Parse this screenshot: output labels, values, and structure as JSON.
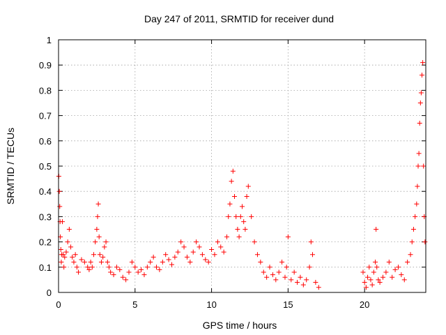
{
  "chart_data": {
    "type": "scatter",
    "title": "Day 247 of 2011, SRMTID for receiver dund",
    "xlabel": "GPS time / hours",
    "ylabel": "SRMTID / TECUs",
    "xlim": [
      0,
      24
    ],
    "ylim": [
      0,
      1
    ],
    "x_ticks": [
      0,
      5,
      10,
      15,
      20
    ],
    "x_tick_labels": [
      "0",
      "5",
      "10",
      "15",
      "20"
    ],
    "y_ticks": [
      0,
      0.1,
      0.2,
      0.3,
      0.4,
      0.5,
      0.6,
      0.7,
      0.8,
      0.9,
      1
    ],
    "y_tick_labels": [
      "0",
      "0.1",
      "0.2",
      "0.3",
      "0.4",
      "0.5",
      "0.6",
      "0.7",
      "0.8",
      "0.9",
      "1"
    ],
    "grid": true,
    "marker": "+",
    "color": "#ff0000",
    "series": [
      {
        "name": "SRMTID",
        "x": [
          0.02,
          0.05,
          0.08,
          0.1,
          0.12,
          0.15,
          0.18,
          0.2,
          0.25,
          0.3,
          0.35,
          0.4,
          0.5,
          0.6,
          0.7,
          0.8,
          0.9,
          1.0,
          1.1,
          1.2,
          1.3,
          1.5,
          1.7,
          1.9,
          2.0,
          2.1,
          2.2,
          2.3,
          2.4,
          2.5,
          2.55,
          2.6,
          2.65,
          2.7,
          2.8,
          2.9,
          3.0,
          3.1,
          3.2,
          3.3,
          3.4,
          3.6,
          3.8,
          4.0,
          4.2,
          4.4,
          4.6,
          4.8,
          5.0,
          5.2,
          5.4,
          5.6,
          5.8,
          6.0,
          6.2,
          6.4,
          6.6,
          6.8,
          7.0,
          7.2,
          7.4,
          7.6,
          7.8,
          8.0,
          8.2,
          8.4,
          8.6,
          8.8,
          9.0,
          9.2,
          9.4,
          9.6,
          9.8,
          10.0,
          10.2,
          10.4,
          10.6,
          10.8,
          11.0,
          11.1,
          11.2,
          11.3,
          11.4,
          11.5,
          11.6,
          11.7,
          11.8,
          11.9,
          12.0,
          12.1,
          12.2,
          12.3,
          12.4,
          12.6,
          12.8,
          13.0,
          13.2,
          13.4,
          13.6,
          13.8,
          14.0,
          14.2,
          14.4,
          14.6,
          14.8,
          14.9,
          15.0,
          15.2,
          15.4,
          15.6,
          15.8,
          16.0,
          16.2,
          16.4,
          16.5,
          16.6,
          16.8,
          17.0,
          19.9,
          20.0,
          20.1,
          20.2,
          20.3,
          20.4,
          20.5,
          20.6,
          20.7,
          20.75,
          20.8,
          20.9,
          21.0,
          21.2,
          21.4,
          21.6,
          21.8,
          22.0,
          22.2,
          22.4,
          22.6,
          22.8,
          23.0,
          23.1,
          23.2,
          23.3,
          23.4,
          23.45,
          23.5,
          23.55,
          23.6,
          23.65,
          23.7,
          23.75,
          23.8,
          23.85,
          23.9,
          23.95
        ],
        "y": [
          0.46,
          0.4,
          0.34,
          0.28,
          0.22,
          0.17,
          0.12,
          0.15,
          0.28,
          0.15,
          0.1,
          0.14,
          0.16,
          0.2,
          0.25,
          0.18,
          0.14,
          0.12,
          0.15,
          0.1,
          0.08,
          0.13,
          0.12,
          0.1,
          0.09,
          0.12,
          0.1,
          0.15,
          0.2,
          0.25,
          0.3,
          0.35,
          0.22,
          0.15,
          0.12,
          0.14,
          0.18,
          0.2,
          0.12,
          0.1,
          0.08,
          0.07,
          0.1,
          0.09,
          0.06,
          0.05,
          0.08,
          0.12,
          0.1,
          0.08,
          0.09,
          0.07,
          0.1,
          0.12,
          0.14,
          0.1,
          0.09,
          0.12,
          0.15,
          0.13,
          0.11,
          0.14,
          0.16,
          0.2,
          0.18,
          0.14,
          0.12,
          0.16,
          0.2,
          0.18,
          0.15,
          0.13,
          0.12,
          0.17,
          0.15,
          0.2,
          0.18,
          0.16,
          0.22,
          0.3,
          0.35,
          0.44,
          0.48,
          0.38,
          0.3,
          0.25,
          0.22,
          0.3,
          0.34,
          0.28,
          0.25,
          0.38,
          0.42,
          0.3,
          0.2,
          0.15,
          0.12,
          0.08,
          0.06,
          0.1,
          0.07,
          0.05,
          0.08,
          0.12,
          0.06,
          0.1,
          0.22,
          0.05,
          0.08,
          0.04,
          0.06,
          0.03,
          0.05,
          0.1,
          0.2,
          0.15,
          0.04,
          0.02,
          0.08,
          0.04,
          0.02,
          0.06,
          0.1,
          0.05,
          0.03,
          0.08,
          0.12,
          0.25,
          0.1,
          0.05,
          0.04,
          0.06,
          0.08,
          0.12,
          0.06,
          0.09,
          0.1,
          0.07,
          0.05,
          0.12,
          0.15,
          0.2,
          0.25,
          0.3,
          0.35,
          0.42,
          0.5,
          0.55,
          0.67,
          0.75,
          0.79,
          0.86,
          0.91,
          0.5,
          0.3,
          0.2
        ]
      }
    ]
  }
}
